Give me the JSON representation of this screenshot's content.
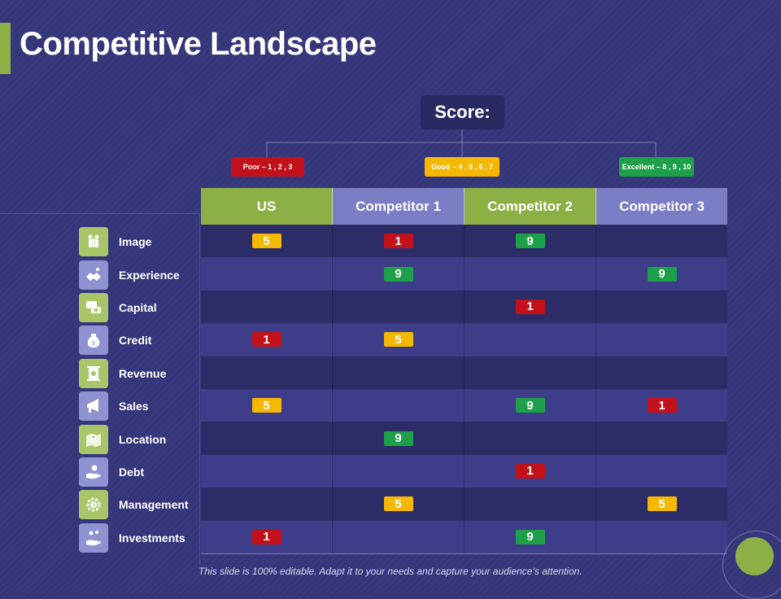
{
  "title": "Competitive Landscape",
  "score_label": "Score:",
  "legend": [
    {
      "label": "Poor – 1 , 2 , 3",
      "level": "poor"
    },
    {
      "label": "Good – 4 , 5 , 6 , 7",
      "level": "good"
    },
    {
      "label": "Excellent – 8 , 9 , 10",
      "level": "exc"
    }
  ],
  "columns": [
    "US",
    "Competitor 1",
    "Competitor 2",
    "Competitor 3"
  ],
  "rows": [
    {
      "label": "Image",
      "icon": "people-icon",
      "scores": [
        "5",
        "1",
        "9",
        ""
      ]
    },
    {
      "label": "Experience",
      "icon": "handshake-icon",
      "scores": [
        "",
        "9",
        "",
        "9"
      ]
    },
    {
      "label": "Capital",
      "icon": "money-chat-icon",
      "scores": [
        "",
        "",
        "1",
        ""
      ]
    },
    {
      "label": "Credit",
      "icon": "money-bag-icon",
      "scores": [
        "1",
        "5",
        "",
        ""
      ]
    },
    {
      "label": "Revenue",
      "icon": "revenue-scroll-icon",
      "scores": [
        "",
        "",
        "",
        ""
      ]
    },
    {
      "label": "Sales",
      "icon": "megaphone-icon",
      "scores": [
        "5",
        "",
        "9",
        "1"
      ]
    },
    {
      "label": "Location",
      "icon": "map-pin-icon",
      "scores": [
        "",
        "9",
        "",
        ""
      ]
    },
    {
      "label": "Debt",
      "icon": "hand-coin-icon",
      "scores": [
        "",
        "",
        "1",
        ""
      ]
    },
    {
      "label": "Management",
      "icon": "gear-clock-icon",
      "scores": [
        "",
        "5",
        "",
        "5"
      ]
    },
    {
      "label": "Investments",
      "icon": "investment-hand-icon",
      "scores": [
        "1",
        "",
        "9",
        ""
      ]
    }
  ],
  "colors": {
    "poor": "#c2111b",
    "good": "#f5b800",
    "excellent": "#1ea04a",
    "accent": "#8db046",
    "purple_header": "#7b7ec4"
  },
  "footer": "This slide is 100% editable. Adapt it to your needs and capture your audience’s attention."
}
